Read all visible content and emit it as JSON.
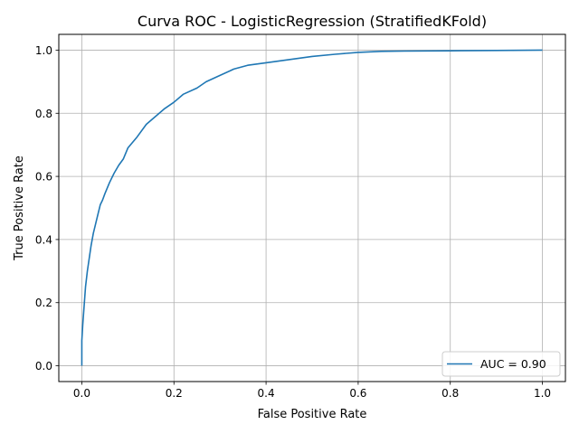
{
  "chart_data": {
    "type": "line",
    "title": "Curva ROC - LogisticRegression (StratifiedKFold)",
    "xlabel": "False Positive Rate",
    "ylabel": "True Positive Rate",
    "xlim": [
      -0.05,
      1.05
    ],
    "ylim": [
      -0.05,
      1.05
    ],
    "xticks": [
      "0.0",
      "0.2",
      "0.4",
      "0.6",
      "0.8",
      "1.0"
    ],
    "yticks": [
      "0.0",
      "0.2",
      "0.4",
      "0.6",
      "0.8",
      "1.0"
    ],
    "grid": true,
    "legend_position": "lower-right",
    "series": [
      {
        "name": "AUC = 0.90",
        "color": "#1f77b4",
        "x": [
          0.0,
          0.0,
          0.002,
          0.005,
          0.008,
          0.012,
          0.016,
          0.02,
          0.025,
          0.03,
          0.035,
          0.04,
          0.045,
          0.05,
          0.06,
          0.07,
          0.08,
          0.09,
          0.1,
          0.12,
          0.14,
          0.16,
          0.18,
          0.2,
          0.22,
          0.25,
          0.27,
          0.3,
          0.33,
          0.36,
          0.4,
          0.45,
          0.5,
          0.55,
          0.6,
          0.65,
          0.7,
          0.8,
          0.9,
          1.0
        ],
        "y": [
          0.0,
          0.08,
          0.13,
          0.19,
          0.25,
          0.3,
          0.34,
          0.38,
          0.42,
          0.45,
          0.48,
          0.51,
          0.525,
          0.545,
          0.58,
          0.61,
          0.635,
          0.655,
          0.69,
          0.725,
          0.765,
          0.79,
          0.815,
          0.835,
          0.86,
          0.88,
          0.9,
          0.92,
          0.94,
          0.952,
          0.96,
          0.97,
          0.98,
          0.987,
          0.993,
          0.996,
          0.997,
          0.998,
          0.999,
          1.0
        ]
      }
    ]
  }
}
